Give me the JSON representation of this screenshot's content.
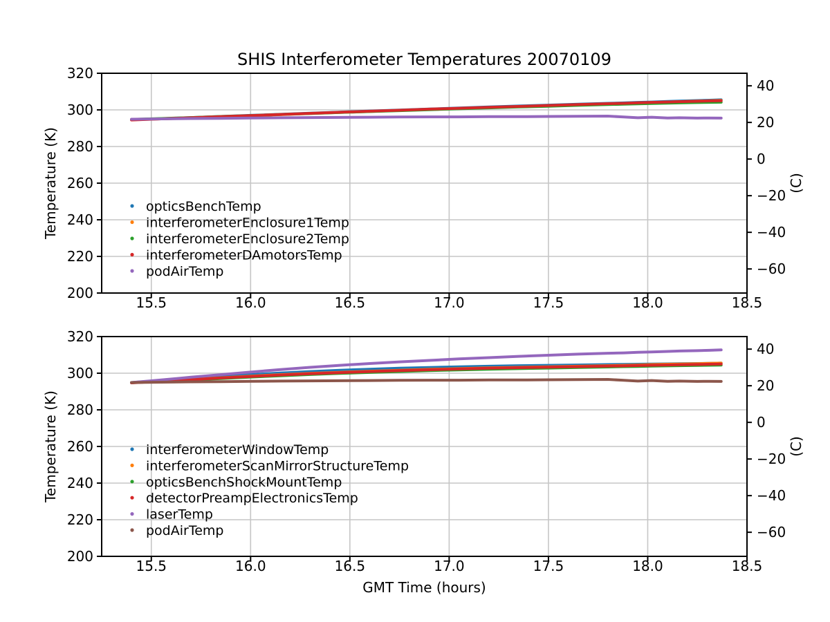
{
  "figure": {
    "title": "SHIS Interferometer Temperatures 20070109",
    "xlabel": "GMT Time (hours)",
    "background_color": "#ffffff",
    "grid_color": "#c6c6c6",
    "spine_color": "#000000"
  },
  "chart_data": [
    {
      "type": "line",
      "title": "SHIS Interferometer Temperatures 20070109",
      "ylabel": "Temperature (K)",
      "right_ylabel": "(C)",
      "xlabel": "",
      "grid": true,
      "legend_position": "lower-left-inside",
      "xlim": [
        15.25,
        18.5
      ],
      "ylim": [
        200,
        320
      ],
      "xtick_values": [
        15.5,
        16.0,
        16.5,
        17.0,
        17.5,
        18.0,
        18.5
      ],
      "xtick_labels": [
        "15.5",
        "16.0",
        "16.5",
        "17.0",
        "17.5",
        "18.0",
        "18.5"
      ],
      "ytick_values": [
        200,
        220,
        240,
        260,
        280,
        300,
        320
      ],
      "ytick_labels": [
        "200",
        "220",
        "240",
        "260",
        "280",
        "300",
        "320"
      ],
      "right_ytick_values_kelvin": [
        213.15,
        233.15,
        253.15,
        273.15,
        293.15,
        313.15
      ],
      "right_ytick_labels": [
        "−60",
        "−40",
        "−20",
        "0",
        "20",
        "40"
      ],
      "x": [
        15.4,
        15.55,
        15.7,
        15.85,
        16.0,
        16.15,
        16.3,
        16.45,
        16.6,
        16.75,
        16.9,
        17.05,
        17.2,
        17.35,
        17.5,
        17.65,
        17.8,
        17.88,
        17.95,
        18.02,
        18.1,
        18.16,
        18.25,
        18.31,
        18.37
      ],
      "series": [
        {
          "name": "opticsBenchTemp",
          "color": "#1f77b4",
          "values": [
            294.7,
            295.2,
            295.8,
            296.4,
            297.0,
            297.6,
            298.2,
            298.8,
            299.4,
            299.9,
            300.5,
            301.0,
            301.6,
            302.1,
            302.6,
            303.1,
            303.6,
            303.8,
            304.1,
            304.3,
            304.6,
            304.8,
            305.1,
            305.3,
            305.5
          ]
        },
        {
          "name": "interferometerEnclosure1Temp",
          "color": "#ff7f0e",
          "values": [
            294.6,
            295.1,
            295.6,
            296.2,
            296.8,
            297.4,
            298.0,
            298.6,
            299.1,
            299.7,
            300.2,
            300.7,
            301.3,
            301.8,
            302.3,
            302.8,
            303.3,
            303.5,
            303.8,
            304.0,
            304.3,
            304.5,
            304.8,
            305.0,
            305.2
          ]
        },
        {
          "name": "interferometerEnclosure2Temp",
          "color": "#2ca02c",
          "values": [
            294.8,
            295.3,
            295.8,
            296.4,
            296.9,
            297.5,
            298.0,
            298.6,
            299.1,
            299.6,
            300.1,
            300.6,
            301.1,
            301.6,
            302.0,
            302.5,
            302.9,
            303.1,
            303.3,
            303.5,
            303.7,
            303.8,
            304.0,
            304.1,
            304.2
          ]
        },
        {
          "name": "interferometerDAmotorsTemp",
          "color": "#d62728",
          "values": [
            294.5,
            295.1,
            295.7,
            296.3,
            296.9,
            297.5,
            298.1,
            298.7,
            299.3,
            299.8,
            300.4,
            300.9,
            301.4,
            301.9,
            302.4,
            302.9,
            303.4,
            303.6,
            303.9,
            304.1,
            304.3,
            304.5,
            304.7,
            304.9,
            305.0
          ]
        },
        {
          "name": "podAirTemp",
          "color": "#9467bd",
          "values": [
            294.9,
            295.1,
            295.3,
            295.4,
            295.6,
            295.7,
            295.8,
            295.9,
            296.0,
            296.1,
            296.2,
            296.2,
            296.3,
            296.3,
            296.4,
            296.5,
            296.6,
            296.1,
            295.7,
            296.0,
            295.6,
            295.7,
            295.5,
            295.6,
            295.5
          ]
        }
      ]
    },
    {
      "type": "line",
      "title": "",
      "ylabel": "Temperature (K)",
      "right_ylabel": "(C)",
      "xlabel": "GMT Time (hours)",
      "grid": true,
      "legend_position": "lower-left-inside",
      "xlim": [
        15.25,
        18.5
      ],
      "ylim": [
        200,
        320
      ],
      "xtick_values": [
        15.5,
        16.0,
        16.5,
        17.0,
        17.5,
        18.0,
        18.5
      ],
      "xtick_labels": [
        "15.5",
        "16.0",
        "16.5",
        "17.0",
        "17.5",
        "18.0",
        "18.5"
      ],
      "ytick_values": [
        200,
        220,
        240,
        260,
        280,
        300,
        320
      ],
      "ytick_labels": [
        "200",
        "220",
        "240",
        "260",
        "280",
        "300",
        "320"
      ],
      "right_ytick_values_kelvin": [
        213.15,
        233.15,
        253.15,
        273.15,
        293.15,
        313.15
      ],
      "right_ytick_labels": [
        "−60",
        "−40",
        "−20",
        "0",
        "20",
        "40"
      ],
      "x": [
        15.4,
        15.55,
        15.7,
        15.85,
        16.0,
        16.15,
        16.3,
        16.45,
        16.6,
        16.75,
        16.9,
        17.05,
        17.2,
        17.35,
        17.5,
        17.65,
        17.8,
        17.88,
        17.95,
        18.02,
        18.1,
        18.16,
        18.25,
        18.31,
        18.37
      ],
      "series": [
        {
          "name": "interferometerWindowTemp",
          "color": "#1f77b4",
          "values": [
            294.9,
            296.0,
            297.1,
            298.2,
            299.2,
            300.1,
            300.9,
            301.6,
            302.2,
            302.7,
            303.1,
            303.5,
            303.8,
            304.1,
            304.3,
            304.5,
            304.7,
            304.8,
            304.9,
            305.0,
            305.1,
            305.2,
            305.3,
            305.4,
            305.5
          ]
        },
        {
          "name": "interferometerScanMirrorStructureTemp",
          "color": "#ff7f0e",
          "values": [
            294.8,
            295.7,
            296.6,
            297.5,
            298.4,
            299.2,
            299.9,
            300.5,
            301.1,
            301.6,
            302.1,
            302.5,
            302.9,
            303.2,
            303.5,
            303.8,
            304.1,
            304.3,
            304.5,
            304.7,
            304.9,
            305.0,
            305.2,
            305.35,
            305.5
          ]
        },
        {
          "name": "opticsBenchShockMountTemp",
          "color": "#2ca02c",
          "values": [
            294.8,
            295.5,
            296.3,
            297.1,
            297.9,
            298.6,
            299.3,
            299.9,
            300.4,
            300.9,
            301.4,
            301.8,
            302.2,
            302.5,
            302.8,
            303.1,
            303.4,
            303.6,
            303.7,
            303.9,
            304.0,
            304.1,
            304.25,
            304.35,
            304.45
          ]
        },
        {
          "name": "detectorPreampElectronicsTemp",
          "color": "#d62728",
          "values": [
            294.7,
            295.6,
            296.5,
            297.4,
            298.2,
            299.0,
            299.7,
            300.3,
            300.9,
            301.4,
            301.9,
            302.3,
            302.7,
            303.0,
            303.3,
            303.6,
            303.9,
            304.0,
            304.2,
            304.35,
            304.5,
            304.6,
            304.75,
            304.9,
            305.0
          ]
        },
        {
          "name": "laserTemp",
          "color": "#9467bd",
          "values": [
            294.9,
            296.3,
            297.8,
            299.2,
            300.6,
            302.0,
            303.2,
            304.3,
            305.3,
            306.2,
            307.0,
            307.8,
            308.5,
            309.2,
            309.8,
            310.4,
            310.9,
            311.1,
            311.4,
            311.6,
            311.9,
            312.1,
            312.3,
            312.5,
            312.7
          ]
        },
        {
          "name": "podAirTemp",
          "color": "#8c564b",
          "values": [
            294.9,
            295.1,
            295.3,
            295.4,
            295.6,
            295.7,
            295.8,
            295.9,
            296.0,
            296.1,
            296.2,
            296.2,
            296.3,
            296.3,
            296.4,
            296.5,
            296.6,
            296.1,
            295.7,
            296.0,
            295.6,
            295.7,
            295.5,
            295.6,
            295.5
          ]
        }
      ]
    }
  ]
}
